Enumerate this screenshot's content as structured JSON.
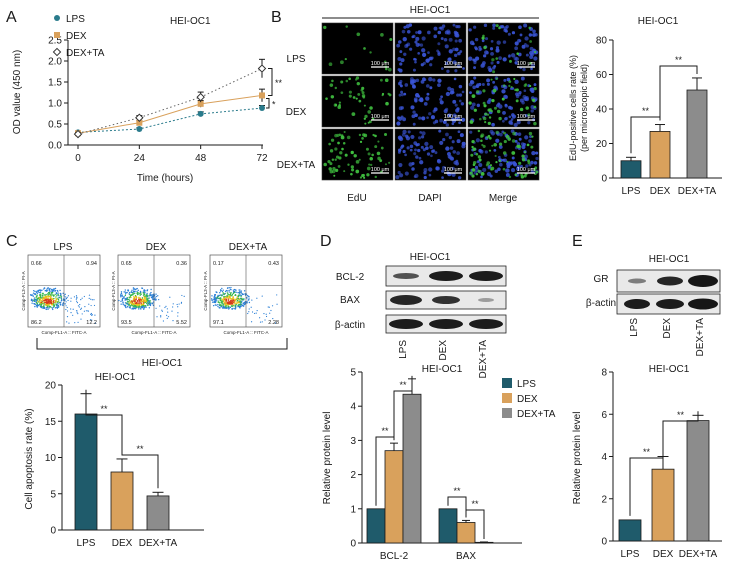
{
  "colors": {
    "lps": "#1f5b6b",
    "dex": "#d9a15c",
    "dex_ta": "#8c8c8c",
    "lps_line": "#2a7b8c",
    "edu_cell": "#3fbf3f",
    "dapi_cell": "#3a55d8",
    "micro_bg": "#050510",
    "flow_gate": "#555555"
  },
  "panels": {
    "A": {
      "letter": "A",
      "cell_line": "HEI-OC1"
    },
    "B": {
      "letter": "B",
      "cell_line": "HEI-OC1",
      "bar_title": "HEI-OC1",
      "rows": [
        "LPS",
        "DEX",
        "DEX+TA"
      ],
      "cols": [
        "EdU",
        "DAPI",
        "Merge"
      ],
      "scale_label": "100 μm"
    },
    "C": {
      "letter": "C",
      "group_label": "HEI-OC1",
      "flow_titles": [
        "LPS",
        "DEX",
        "DEX+TA"
      ],
      "flow_quadrants": [
        [
          "0.66",
          "0.94",
          "86.2",
          "12.2"
        ],
        [
          "0.65",
          "0.36",
          "93.5",
          "5.52"
        ],
        [
          "0.17",
          "0.43",
          "97.1",
          "2.28"
        ]
      ],
      "flow_xlabel": "Comp-FL1-A :: FITC-A",
      "flow_ylabel": "Comp-FL3-A :: PI-A"
    },
    "D": {
      "letter": "D",
      "blot_title": "HEI-OC1",
      "blot_rows": [
        "BCL-2",
        "BAX",
        "β-actin"
      ],
      "blot_cols": [
        "LPS",
        "DEX",
        "DEX+TA"
      ]
    },
    "E": {
      "letter": "E",
      "blot_title": "HEI-OC1",
      "blot_rows": [
        "GR",
        "β-actin"
      ],
      "blot_cols": [
        "LPS",
        "DEX",
        "DEX+TA"
      ]
    }
  },
  "chart_data": [
    {
      "id": "A",
      "type": "line",
      "title": "HEI-OC1",
      "xlabel": "Time (hours)",
      "ylabel": "OD value (450 nm)",
      "x": [
        0,
        24,
        48,
        72
      ],
      "xlim": [
        0,
        72
      ],
      "ylim": [
        0.0,
        2.5
      ],
      "yticks": [
        "0.0",
        "0.5",
        "1.0",
        "1.5",
        "2.0",
        "2.5"
      ],
      "series": [
        {
          "name": "LPS",
          "values": [
            0.3,
            0.38,
            0.74,
            0.88
          ],
          "errors": [
            0.03,
            0.03,
            0.05,
            0.06
          ]
        },
        {
          "name": "DEX",
          "values": [
            0.28,
            0.53,
            0.98,
            1.18
          ],
          "errors": [
            0.03,
            0.05,
            0.08,
            0.15
          ]
        },
        {
          "name": "DEX+TA",
          "values": [
            0.26,
            0.65,
            1.14,
            1.82
          ],
          "errors": [
            0.03,
            0.05,
            0.12,
            0.22
          ]
        }
      ],
      "sig": [
        "**",
        "*"
      ]
    },
    {
      "id": "B",
      "type": "bar",
      "title": "HEI-OC1",
      "ylabel": "EdU-positive cells rate (%)",
      "ylabel2": "(per microscopic field)",
      "categories": [
        "LPS",
        "DEX",
        "DEX+TA"
      ],
      "values": [
        10,
        27,
        51
      ],
      "errors": [
        2,
        4,
        7
      ],
      "ylim": [
        0,
        80
      ],
      "yticks": [
        "0",
        "20",
        "40",
        "60",
        "80"
      ],
      "sig": [
        "**",
        "**"
      ]
    },
    {
      "id": "C",
      "type": "bar",
      "title": "HEI-OC1",
      "ylabel": "Cell apoptosis rate (%)",
      "categories": [
        "LPS",
        "DEX",
        "DEX+TA"
      ],
      "values": [
        16,
        8,
        4.7
      ],
      "errors": [
        2.8,
        1.8,
        0.5
      ],
      "ylim": [
        0,
        20
      ],
      "yticks": [
        "0",
        "5",
        "10",
        "15",
        "20"
      ],
      "sig": [
        "**",
        "**"
      ]
    },
    {
      "id": "D",
      "type": "bar",
      "title": "HEI-OC1",
      "ylabel": "Relative protein level",
      "categories": [
        "BCL-2",
        "BAX"
      ],
      "series": [
        {
          "name": "LPS",
          "values": [
            1.0,
            1.0
          ],
          "errors": [
            0,
            0
          ]
        },
        {
          "name": "DEX",
          "values": [
            2.7,
            0.6
          ],
          "errors": [
            0.22,
            0.06
          ]
        },
        {
          "name": "DEX+TA",
          "values": [
            4.35,
            0.02
          ],
          "errors": [
            0.45,
            0.01
          ]
        }
      ],
      "ylim": [
        0,
        5
      ],
      "yticks": [
        "0",
        "1",
        "2",
        "3",
        "4",
        "5"
      ],
      "legend": "top-right",
      "sig": [
        "**",
        "**",
        "**",
        "**"
      ]
    },
    {
      "id": "E",
      "type": "bar",
      "title": "HEI-OC1",
      "ylabel": "Relative protein level",
      "categories": [
        "LPS",
        "DEX",
        "DEX+TA"
      ],
      "values": [
        1.0,
        3.4,
        5.7
      ],
      "errors": [
        0,
        0.6,
        0.25
      ],
      "ylim": [
        0,
        8
      ],
      "yticks": [
        "0",
        "2",
        "4",
        "6",
        "8"
      ],
      "sig": [
        "**",
        "**"
      ]
    }
  ]
}
